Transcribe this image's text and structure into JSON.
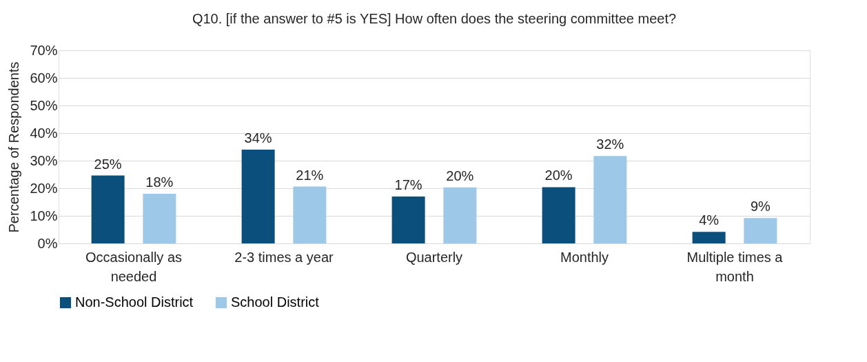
{
  "chart_data": {
    "type": "bar",
    "title": "Q10. [if the answer to #5 is YES] How often does the steering committee meet?",
    "ylabel": "Percentage of Respondents",
    "categories": [
      "Occasionally as needed",
      "2-3 times a year",
      "Quarterly",
      "Monthly",
      "Multiple times a month"
    ],
    "series": [
      {
        "name": "Non-School District",
        "color": "#0b4f7c",
        "values": [
          24.6,
          34,
          17,
          20.4,
          4.2
        ],
        "value_labels": [
          "25%",
          "34%",
          "17%",
          "20%",
          "4%"
        ]
      },
      {
        "name": "School District",
        "color": "#9dc8e8",
        "values": [
          18,
          20.6,
          20.3,
          31.7,
          9.2
        ],
        "value_labels": [
          "18%",
          "21%",
          "20%",
          "32%",
          "9%"
        ]
      }
    ],
    "ylim": [
      0,
      70
    ],
    "yticks": [
      {
        "value": 0,
        "label": "0%"
      },
      {
        "value": 10,
        "label": "10%"
      },
      {
        "value": 20,
        "label": "20%"
      },
      {
        "value": 30,
        "label": "30%"
      },
      {
        "value": 40,
        "label": "40%"
      },
      {
        "value": 50,
        "label": "50%"
      },
      {
        "value": 60,
        "label": "60%"
      },
      {
        "value": 70,
        "label": "70%"
      }
    ],
    "grid": "y",
    "legend": "bottom"
  }
}
